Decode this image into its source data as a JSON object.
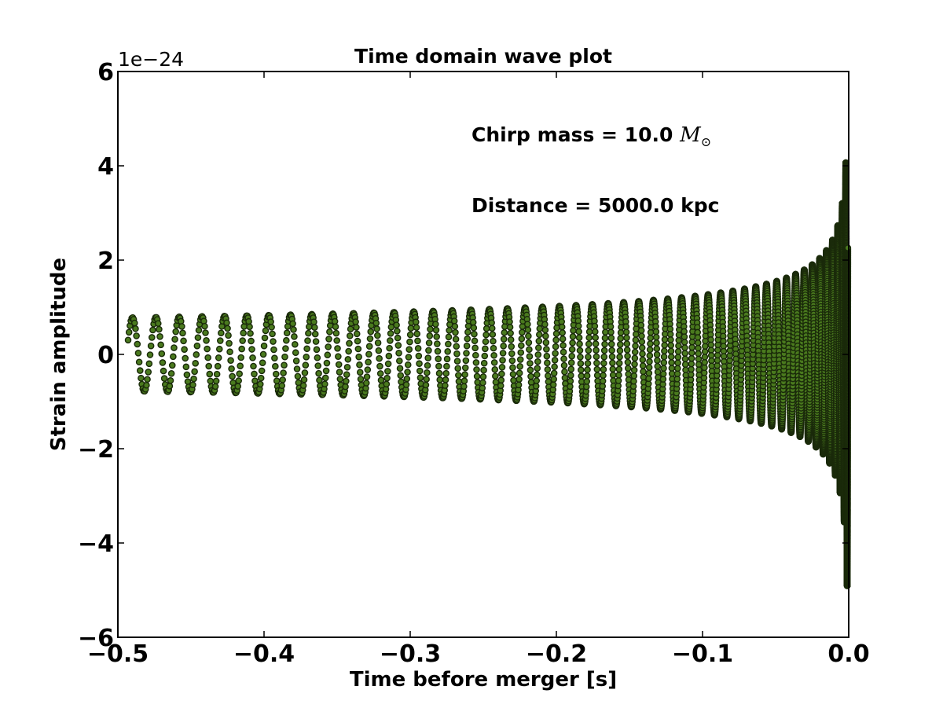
{
  "chart_data": {
    "type": "scatter",
    "title": "Time domain wave plot",
    "xlabel": "Time before merger [s]",
    "ylabel": "Strain amplitude",
    "y_offset_label": "1e−24",
    "xlim": [
      -0.5,
      0.0
    ],
    "ylim": [
      -6,
      6
    ],
    "y_scale_factor": 1e-24,
    "xticks": [
      -0.5,
      -0.4,
      -0.3,
      -0.2,
      -0.1,
      0.0
    ],
    "xtick_labels": [
      "−0.5",
      "−0.4",
      "−0.3",
      "−0.2",
      "−0.1",
      "0.0"
    ],
    "yticks": [
      -6,
      -4,
      -2,
      0,
      2,
      4,
      6
    ],
    "ytick_labels": [
      "−6",
      "−4",
      "−2",
      "0",
      "2",
      "4",
      "6"
    ],
    "grid": false,
    "annotations": [
      {
        "text": "Chirp mass = 10.0 ",
        "math": "M",
        "math_sub": "⊙"
      },
      {
        "text": "Distance = 5000.0 kpc"
      }
    ],
    "series": [
      {
        "marker_color": "#4a7a1e",
        "marker_edge_color": "#1a2a0a",
        "signal": {
          "model": "inspiral_chirp",
          "t_start": -0.493,
          "t_end": 0.0,
          "initial_amplitude": 0.78,
          "peak_amplitude": 5.8,
          "cycles_visible": 48
        }
      }
    ]
  }
}
